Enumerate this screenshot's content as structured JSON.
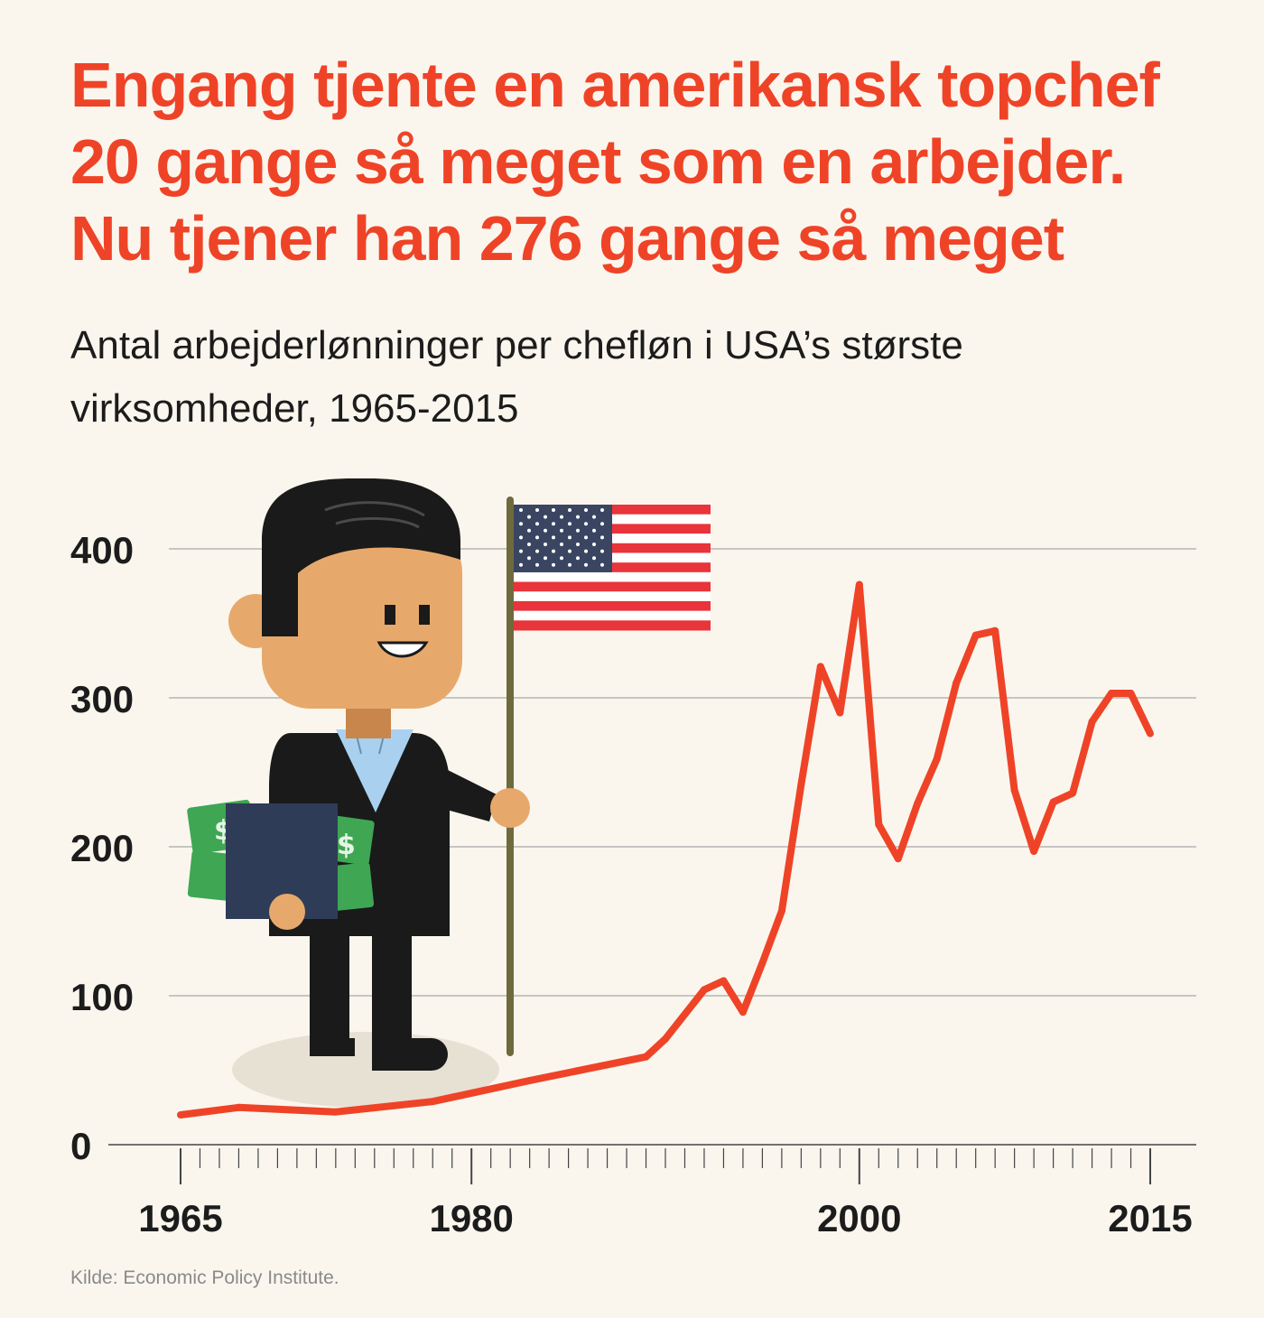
{
  "headline": {
    "line1": "Engang tjente en amerikansk topchef",
    "line2": "20 gange så meget som en arbejder.",
    "line3": "Nu tjener han 276 gange så meget"
  },
  "subtitle": {
    "line1": "Antal arbejderlønninger per chefløn i USA’s største",
    "line2": "virksomheder, 1965-2015"
  },
  "source": "Kilde: Economic Policy Institute.",
  "colors": {
    "background": "#faf6ee",
    "accent": "#ef4327",
    "text": "#1c1c1c",
    "gridline": "#a8a8a8"
  },
  "illustration": {
    "subject": "businessman-holding-us-flag-and-folder-with-money-icon"
  },
  "chart_data": {
    "type": "line",
    "title": "Engang tjente en amerikansk topchef 20 gange så meget som en arbejder. Nu tjener han 276 gange så meget",
    "subtitle": "Antal arbejderlønninger per chefløn i USA’s største virksomheder, 1965-2015",
    "xlabel": "",
    "ylabel": "",
    "xlim": [
      1965,
      2015
    ],
    "ylim": [
      0,
      400
    ],
    "x_ticks": [
      1965,
      1980,
      2000,
      2015
    ],
    "y_ticks": [
      0,
      100,
      200,
      300,
      400
    ],
    "grid": true,
    "series": [
      {
        "color": "#ef4327",
        "x": [
          1965,
          1968,
          1973,
          1978,
          1983,
          1989,
          1990,
          1992,
          1993,
          1994,
          1995,
          1996,
          1997,
          1998,
          1999,
          2000,
          2001,
          2002,
          2003,
          2004,
          2005,
          2006,
          2007,
          2008,
          2009,
          2010,
          2011,
          2012,
          2013,
          2014,
          2015
        ],
        "y": [
          20,
          25,
          22,
          29,
          43,
          59,
          71,
          104,
          110,
          89,
          122,
          157,
          242,
          321,
          290,
          376,
          215,
          192,
          229,
          259,
          310,
          342,
          345,
          238,
          197,
          230,
          236,
          284,
          303,
          303,
          276
        ]
      }
    ]
  }
}
